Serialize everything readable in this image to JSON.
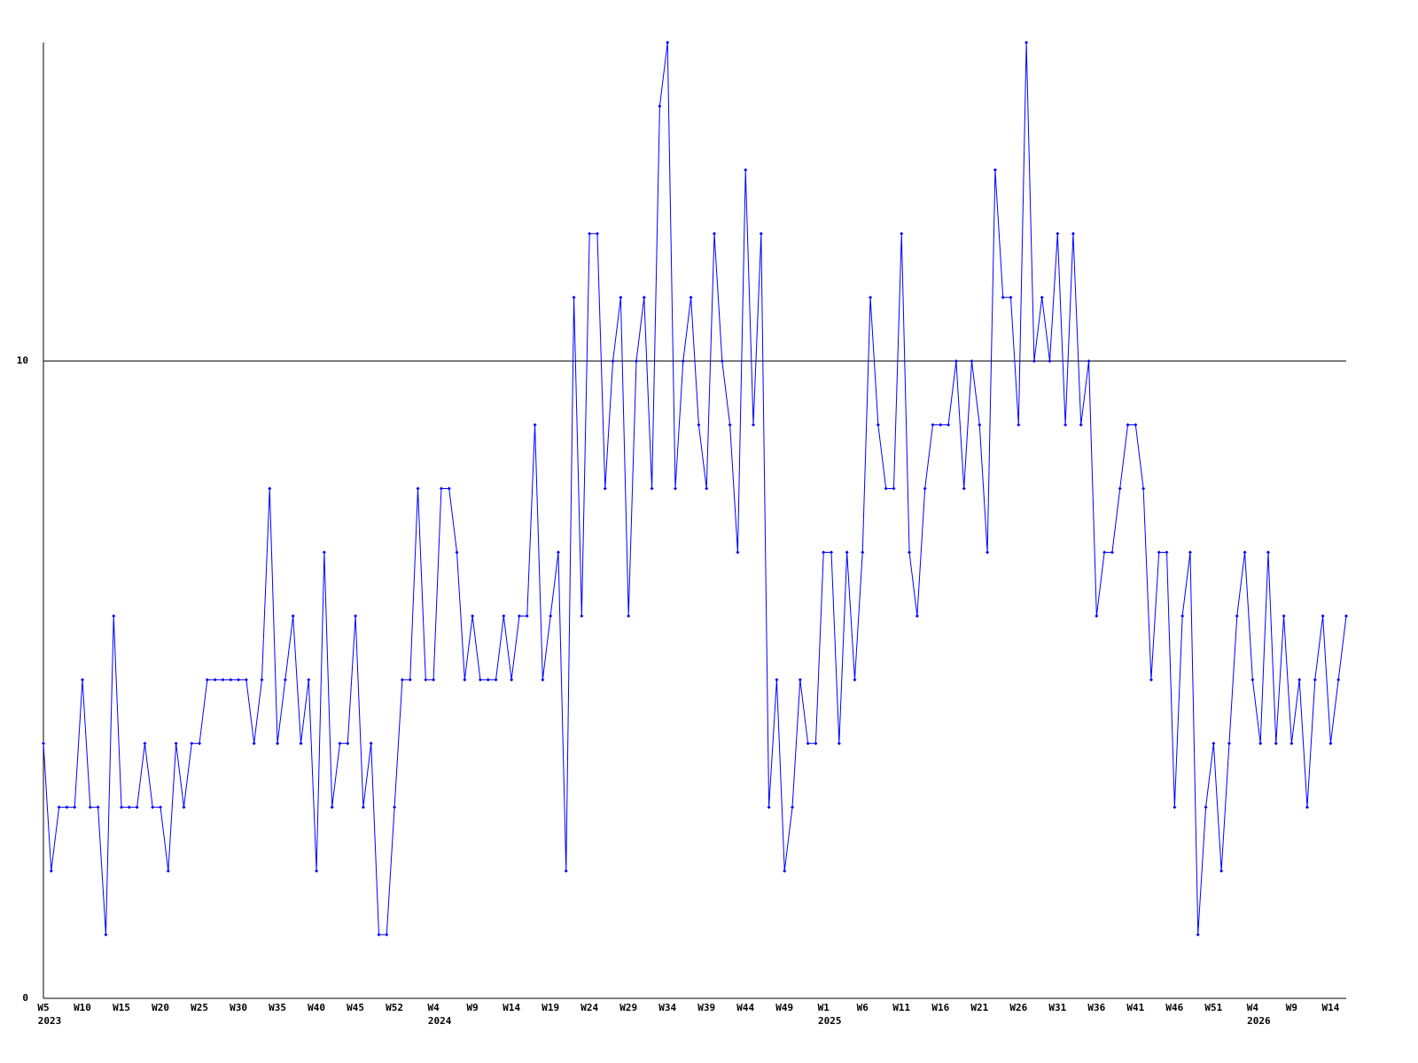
{
  "chart_data": {
    "type": "line",
    "categories": [
      "W5",
      null,
      null,
      null,
      null,
      "W10",
      null,
      null,
      null,
      null,
      "W15",
      null,
      null,
      null,
      null,
      "W20",
      null,
      null,
      null,
      null,
      "W25",
      null,
      null,
      null,
      null,
      "W30",
      null,
      null,
      null,
      null,
      "W35",
      null,
      null,
      null,
      null,
      "W40",
      null,
      null,
      null,
      null,
      "W45",
      null,
      null,
      null,
      null,
      "W52",
      null,
      null,
      null,
      null,
      "W4",
      null,
      null,
      null,
      null,
      "W9",
      null,
      null,
      null,
      null,
      "W14",
      null,
      null,
      null,
      null,
      "W19",
      null,
      null,
      null,
      null,
      "W24",
      null,
      null,
      null,
      null,
      "W29",
      null,
      null,
      null,
      null,
      "W34",
      null,
      null,
      null,
      null,
      "W39",
      null,
      null,
      null,
      null,
      "W44",
      null,
      null,
      null,
      null,
      "W49",
      null,
      null,
      null,
      null,
      "W1",
      null,
      null,
      null,
      null,
      "W6",
      null,
      null,
      null,
      null,
      "W11",
      null,
      null,
      null,
      null,
      "W16",
      null,
      null,
      null,
      null,
      "W21",
      null,
      null,
      null,
      null,
      "W26",
      null,
      null,
      null,
      null,
      "W31",
      null,
      null,
      null,
      null,
      "W36",
      null,
      null,
      null,
      null,
      "W41",
      null,
      null,
      null,
      null,
      "W46",
      null,
      null,
      null,
      null,
      "W51",
      null,
      null,
      null,
      null,
      "W4",
      null,
      null,
      null,
      null,
      "W9",
      null,
      null,
      null,
      null,
      "W14",
      null,
      null
    ],
    "category_years": [
      "2023",
      null,
      null,
      null,
      null,
      null,
      null,
      null,
      null,
      null,
      null,
      null,
      null,
      null,
      null,
      null,
      null,
      null,
      null,
      null,
      null,
      null,
      null,
      null,
      null,
      null,
      null,
      null,
      null,
      null,
      null,
      null,
      null,
      null,
      null,
      null,
      null,
      null,
      null,
      null,
      null,
      null,
      null,
      null,
      null,
      null,
      null,
      null,
      null,
      null,
      "2024",
      null,
      null,
      null,
      null,
      null,
      null,
      null,
      null,
      null,
      null,
      null,
      null,
      null,
      null,
      null,
      null,
      null,
      null,
      null,
      null,
      null,
      null,
      null,
      null,
      null,
      null,
      null,
      null,
      null,
      null,
      null,
      null,
      null,
      null,
      null,
      null,
      null,
      null,
      null,
      null,
      null,
      null,
      null,
      null,
      null,
      null,
      null,
      null,
      null,
      "2025",
      null,
      null,
      null,
      null,
      null,
      null,
      null,
      null,
      null,
      null,
      null,
      null,
      null,
      null,
      null,
      null,
      null,
      null,
      null,
      null,
      null,
      null,
      null,
      null,
      null,
      null,
      null,
      null,
      null,
      null,
      null,
      null,
      null,
      null,
      null,
      null,
      null,
      null,
      null,
      null,
      null,
      null,
      null,
      null,
      null,
      null,
      null,
      null,
      null,
      null,
      null,
      null,
      null,
      null,
      "2026",
      null,
      null,
      null,
      null,
      null,
      null,
      null,
      null,
      null,
      null,
      null,
      null
    ],
    "series": [
      {
        "color": "#0000ff",
        "values": [
          4,
          2,
          3,
          3,
          3,
          5,
          3,
          3,
          1,
          6,
          3,
          3,
          3,
          4,
          3,
          3,
          2,
          4,
          3,
          4,
          4,
          5,
          5,
          5,
          5,
          5,
          5,
          4,
          5,
          8,
          4,
          5,
          6,
          4,
          5,
          2,
          7,
          3,
          4,
          4,
          6,
          3,
          4,
          1,
          1,
          3,
          5,
          5,
          8,
          5,
          5,
          8,
          8,
          7,
          5,
          6,
          5,
          5,
          5,
          6,
          5,
          6,
          6,
          9,
          5,
          6,
          7,
          2,
          11,
          6,
          12,
          12,
          8,
          10,
          11,
          6,
          10,
          11,
          8,
          14,
          15,
          8,
          10,
          11,
          9,
          8,
          12,
          10,
          9,
          7,
          13,
          9,
          12,
          3,
          5,
          2,
          3,
          5,
          4,
          4,
          7,
          7,
          4,
          7,
          5,
          7,
          11,
          9,
          8,
          8,
          12,
          7,
          6,
          8,
          9,
          9,
          9,
          10,
          8,
          10,
          9,
          7,
          13,
          11,
          11,
          9,
          15,
          10,
          11,
          10,
          12,
          9,
          12,
          9,
          10,
          6,
          7,
          7,
          8,
          9,
          9,
          8,
          5,
          7,
          7,
          3,
          6,
          7,
          1,
          3,
          4,
          2,
          4,
          6,
          7,
          5,
          4,
          7,
          4,
          6,
          4,
          5,
          3,
          5,
          6,
          4,
          5,
          6
        ]
      }
    ],
    "ylim": [
      0,
      15
    ],
    "yticks": [
      0,
      10
    ],
    "grid": true
  }
}
